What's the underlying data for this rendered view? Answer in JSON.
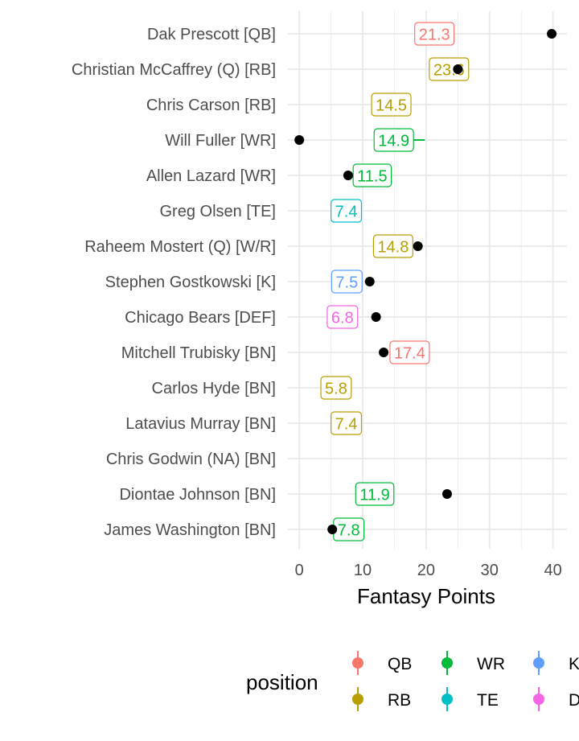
{
  "chart_data": {
    "type": "scatter",
    "xlabel": "Fantasy Points",
    "ylabel": "",
    "xlim": [
      -1.8,
      42.2
    ],
    "x_ticks": [
      0,
      10,
      20,
      30,
      40
    ],
    "grid": true,
    "legend_placement": "bottom",
    "legend_title": "position",
    "legend_entries": [
      {
        "label": "QB",
        "color": "#F8766D"
      },
      {
        "label": "RB",
        "color": "#B79F00"
      },
      {
        "label": "WR",
        "color": "#00BA38"
      },
      {
        "label": "TE",
        "color": "#00BFC4"
      },
      {
        "label": "K",
        "color": "#619CFF"
      },
      {
        "label": "DEF",
        "color": "#F564E3"
      }
    ],
    "players": [
      {
        "name": "Dak Prescott [QB]",
        "position": "QB",
        "projection": 21.3,
        "actual": 39.8,
        "proj_label": "21.3"
      },
      {
        "name": "Christian McCaffrey (Q) [RB]",
        "position": "RB",
        "projection": 23.6,
        "actual": 25.0,
        "proj_label": "23.6"
      },
      {
        "name": "Chris Carson [RB]",
        "position": "RB",
        "projection": 14.5,
        "actual": null,
        "proj_label": "14.5"
      },
      {
        "name": "Will Fuller [WR]",
        "position": "WR",
        "projection": 14.9,
        "actual": 0.0,
        "proj_label": "14.9",
        "err_high": 19.8
      },
      {
        "name": "Allen Lazard [WR]",
        "position": "WR",
        "projection": 11.5,
        "actual": 7.7,
        "proj_label": "11.5"
      },
      {
        "name": "Greg Olsen [TE]",
        "position": "TE",
        "projection": 7.4,
        "actual": null,
        "proj_label": "7.4"
      },
      {
        "name": "Raheem Mostert (Q) [W/R]",
        "position": "RB",
        "projection": 14.8,
        "actual": 18.7,
        "proj_label": "14.8"
      },
      {
        "name": "Stephen Gostkowski [K]",
        "position": "K",
        "projection": 7.5,
        "actual": 11.1,
        "proj_label": "7.5"
      },
      {
        "name": "Chicago Bears [DEF]",
        "position": "DEF",
        "projection": 6.8,
        "actual": 12.1,
        "proj_label": "6.8"
      },
      {
        "name": "Mitchell Trubisky [BN]",
        "position": "QB",
        "projection": 17.4,
        "actual": 13.3,
        "proj_label": "17.4"
      },
      {
        "name": "Carlos Hyde [BN]",
        "position": "RB",
        "projection": 5.8,
        "actual": null,
        "proj_label": "5.8"
      },
      {
        "name": "Latavius Murray [BN]",
        "position": "RB",
        "projection": 7.4,
        "actual": null,
        "proj_label": "7.4"
      },
      {
        "name": "Chris Godwin (NA) [BN]",
        "position": "WR",
        "projection": null,
        "actual": null,
        "proj_label": ""
      },
      {
        "name": "Diontae Johnson [BN]",
        "position": "WR",
        "projection": 11.9,
        "actual": 23.3,
        "proj_label": "11.9"
      },
      {
        "name": "James Washington [BN]",
        "position": "WR",
        "projection": 7.8,
        "actual": 5.2,
        "proj_label": "7.8"
      }
    ]
  }
}
